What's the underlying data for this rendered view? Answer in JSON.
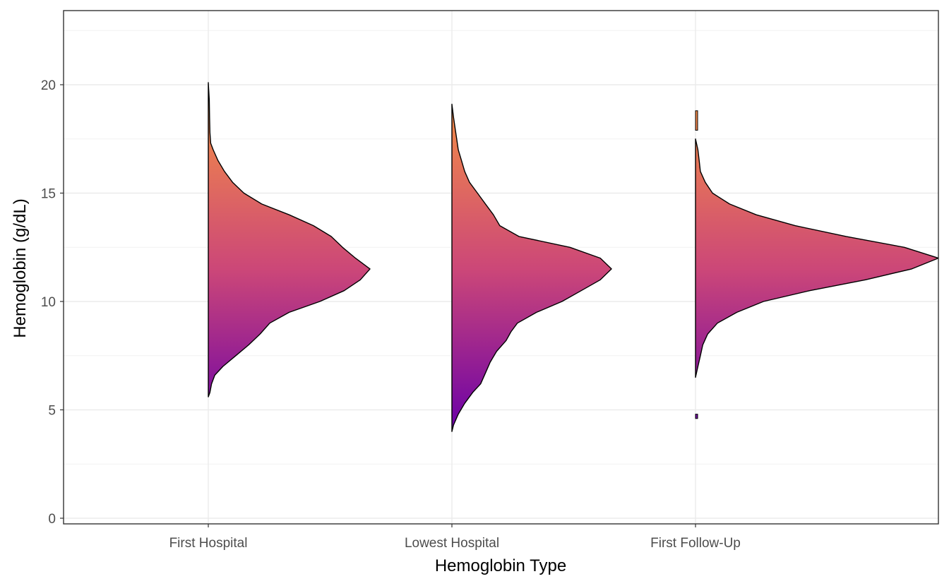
{
  "chart_data": {
    "type": "half-violin",
    "title": "",
    "xlabel": "Hemoglobin Type",
    "ylabel": "Hemoglobin (g/dL)",
    "ylim": [
      0,
      23.5
    ],
    "yticks": [
      0,
      5,
      10,
      15,
      20
    ],
    "ytick_labels": [
      "0",
      "5",
      "10",
      "15",
      "20"
    ],
    "grid": true,
    "fill_gradient": {
      "low_value": 4,
      "low_color": "#6a00a8",
      "mid_value": 11.5,
      "mid_color": "#cc4778",
      "high_value": 20,
      "high_color": "#f89540"
    },
    "categories": [
      "First Hospital",
      "Lowest Hospital",
      "First Follow-Up"
    ],
    "series": [
      {
        "category": "First Hospital",
        "profile": [
          [
            5.6,
            0.0
          ],
          [
            5.8,
            0.01
          ],
          [
            6.2,
            0.02
          ],
          [
            6.6,
            0.04
          ],
          [
            7.0,
            0.09
          ],
          [
            7.5,
            0.17
          ],
          [
            8.0,
            0.25
          ],
          [
            8.5,
            0.32
          ],
          [
            9.0,
            0.38
          ],
          [
            9.5,
            0.5
          ],
          [
            10.0,
            0.69
          ],
          [
            10.5,
            0.84
          ],
          [
            11.0,
            0.94
          ],
          [
            11.5,
            1.0
          ],
          [
            12.0,
            0.91
          ],
          [
            12.5,
            0.83
          ],
          [
            13.0,
            0.76
          ],
          [
            13.5,
            0.65
          ],
          [
            14.0,
            0.5
          ],
          [
            14.5,
            0.33
          ],
          [
            15.0,
            0.22
          ],
          [
            15.5,
            0.15
          ],
          [
            16.0,
            0.1
          ],
          [
            16.5,
            0.06
          ],
          [
            17.0,
            0.03
          ],
          [
            17.3,
            0.015
          ],
          [
            17.8,
            0.01
          ],
          [
            18.5,
            0.008
          ],
          [
            19.3,
            0.006
          ],
          [
            20.1,
            0.0
          ]
        ]
      },
      {
        "category": "Lowest Hospital",
        "profile": [
          [
            4.0,
            0.0
          ],
          [
            4.3,
            0.01
          ],
          [
            4.8,
            0.04
          ],
          [
            5.3,
            0.08
          ],
          [
            5.8,
            0.13
          ],
          [
            6.2,
            0.18
          ],
          [
            6.7,
            0.21
          ],
          [
            7.2,
            0.24
          ],
          [
            7.7,
            0.28
          ],
          [
            8.2,
            0.34
          ],
          [
            8.6,
            0.37
          ],
          [
            9.0,
            0.41
          ],
          [
            9.5,
            0.53
          ],
          [
            10.0,
            0.69
          ],
          [
            10.5,
            0.81
          ],
          [
            11.0,
            0.93
          ],
          [
            11.5,
            1.0
          ],
          [
            12.0,
            0.93
          ],
          [
            12.5,
            0.74
          ],
          [
            13.0,
            0.42
          ],
          [
            13.5,
            0.3
          ],
          [
            14.0,
            0.26
          ],
          [
            14.5,
            0.21
          ],
          [
            15.0,
            0.16
          ],
          [
            15.5,
            0.11
          ],
          [
            16.0,
            0.08
          ],
          [
            16.5,
            0.06
          ],
          [
            17.0,
            0.04
          ],
          [
            17.5,
            0.03
          ],
          [
            18.0,
            0.02
          ],
          [
            18.5,
            0.01
          ],
          [
            19.1,
            0.0
          ]
        ]
      },
      {
        "category": "First Follow-Up",
        "profile": [
          [
            6.5,
            0.0
          ],
          [
            7.0,
            0.01
          ],
          [
            7.5,
            0.02
          ],
          [
            8.0,
            0.03
          ],
          [
            8.5,
            0.05
          ],
          [
            9.0,
            0.09
          ],
          [
            9.5,
            0.17
          ],
          [
            10.0,
            0.28
          ],
          [
            10.5,
            0.47
          ],
          [
            11.0,
            0.7
          ],
          [
            11.5,
            0.89
          ],
          [
            12.0,
            1.0
          ],
          [
            12.5,
            0.86
          ],
          [
            13.0,
            0.62
          ],
          [
            13.5,
            0.41
          ],
          [
            14.0,
            0.25
          ],
          [
            14.5,
            0.14
          ],
          [
            15.0,
            0.07
          ],
          [
            15.5,
            0.04
          ],
          [
            16.0,
            0.02
          ],
          [
            16.5,
            0.015
          ],
          [
            17.0,
            0.01
          ],
          [
            17.5,
            0.0
          ]
        ],
        "outliers": [
          [
            17.9,
            18.8
          ],
          [
            4.6,
            4.8
          ]
        ]
      }
    ]
  }
}
